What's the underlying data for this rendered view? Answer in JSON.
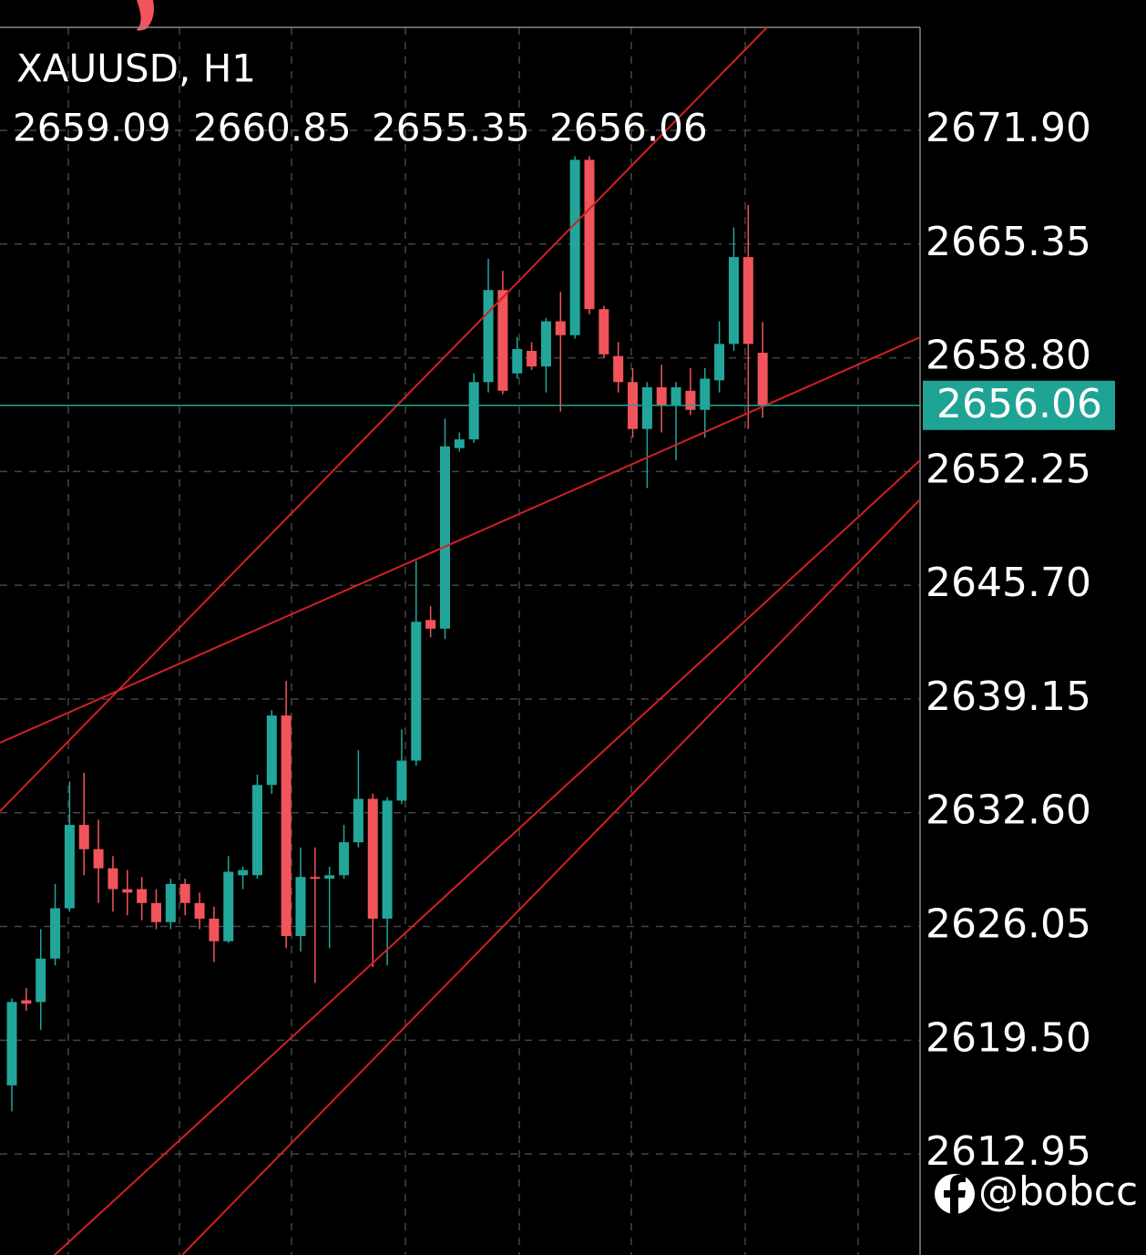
{
  "chart_data": {
    "type": "candlestick",
    "title": "XAUUSD, H1",
    "watermark": "@bobcc",
    "up_color": "#22a69a",
    "down_color": "#f2545b",
    "last_price_color": "#1fa394",
    "grid": true,
    "open": [
      2616.9,
      2621.8,
      2621.7,
      2624.2,
      2627.1,
      2631.9,
      2630.5,
      2629.4,
      2628.2,
      2628.2,
      2627.4,
      2626.3,
      2628.5,
      2627.4,
      2626.5,
      2625.2,
      2629.0,
      2629.0,
      2634.2,
      2638.2,
      2625.5,
      2628.9,
      2628.8,
      2629.0,
      2630.9,
      2633.4,
      2626.5,
      2633.3,
      2635.6,
      2643.7,
      2643.2,
      2653.6,
      2654.1,
      2657.4,
      2662.7,
      2657.9,
      2659.2,
      2658.3,
      2660.9,
      2660.1,
      2670.2,
      2661.6,
      2658.9,
      2657.4,
      2654.7,
      2657.1,
      2656.1,
      2656.9,
      2655.8,
      2657.5,
      2659.6,
      2664.6,
      2659.09
    ],
    "high": [
      2621.9,
      2622.5,
      2625.9,
      2628.5,
      2634.4,
      2634.9,
      2632.2,
      2630.1,
      2629.3,
      2628.9,
      2628.2,
      2628.8,
      2628.8,
      2628.0,
      2627.2,
      2630.1,
      2629.5,
      2634.8,
      2638.5,
      2640.2,
      2630.6,
      2630.6,
      2629.5,
      2631.9,
      2636.2,
      2633.7,
      2633.5,
      2637.4,
      2647.1,
      2644.5,
      2655.3,
      2654.5,
      2657.9,
      2664.5,
      2663.8,
      2660.0,
      2659.7,
      2661.1,
      2662.6,
      2670.4,
      2670.4,
      2661.8,
      2659.7,
      2658.2,
      2657.4,
      2658.4,
      2657.4,
      2658.2,
      2658.2,
      2660.9,
      2666.3,
      2667.6,
      2660.85
    ],
    "low": [
      2615.4,
      2621.2,
      2620.1,
      2623.8,
      2626.9,
      2629.0,
      2627.4,
      2626.9,
      2626.7,
      2626.4,
      2625.9,
      2625.9,
      2626.7,
      2625.9,
      2624.0,
      2625.1,
      2628.2,
      2628.8,
      2633.7,
      2624.8,
      2624.6,
      2622.8,
      2624.8,
      2628.8,
      2630.6,
      2623.7,
      2623.8,
      2633.1,
      2635.3,
      2642.7,
      2642.6,
      2653.4,
      2653.9,
      2656.8,
      2656.7,
      2657.6,
      2658.1,
      2656.8,
      2655.7,
      2659.9,
      2661.3,
      2658.8,
      2656.8,
      2654.2,
      2651.3,
      2654.5,
      2652.9,
      2655.5,
      2654.2,
      2656.8,
      2659.2,
      2654.7,
      2655.35
    ],
    "close": [
      2621.7,
      2621.6,
      2624.2,
      2627.1,
      2631.9,
      2630.5,
      2629.4,
      2628.2,
      2628.0,
      2627.4,
      2626.3,
      2628.5,
      2627.4,
      2626.5,
      2625.2,
      2629.2,
      2629.3,
      2634.2,
      2638.2,
      2625.5,
      2628.9,
      2628.8,
      2629.0,
      2630.9,
      2633.4,
      2626.5,
      2633.3,
      2635.6,
      2643.6,
      2643.2,
      2653.7,
      2654.1,
      2657.4,
      2662.7,
      2656.9,
      2659.3,
      2658.3,
      2660.9,
      2660.1,
      2670.2,
      2661.6,
      2659.0,
      2657.4,
      2654.7,
      2657.1,
      2656.1,
      2657.1,
      2655.8,
      2657.6,
      2659.6,
      2664.6,
      2659.6,
      2656.06
    ],
    "ylim": [
      2607.13,
      2677.83
    ],
    "yticks": [
      {
        "value": 2671.9,
        "label": "2671.90"
      },
      2665.35,
      {
        "value": 2658.8,
        "label": "2658.80"
      },
      2652.25,
      {
        "value": 2645.7,
        "label": "2645.70"
      },
      2639.15,
      {
        "value": 2632.6,
        "label": "2632.60"
      },
      2626.05,
      {
        "value": 2619.5,
        "label": "2619.50"
      },
      2612.95
    ]
  }
}
